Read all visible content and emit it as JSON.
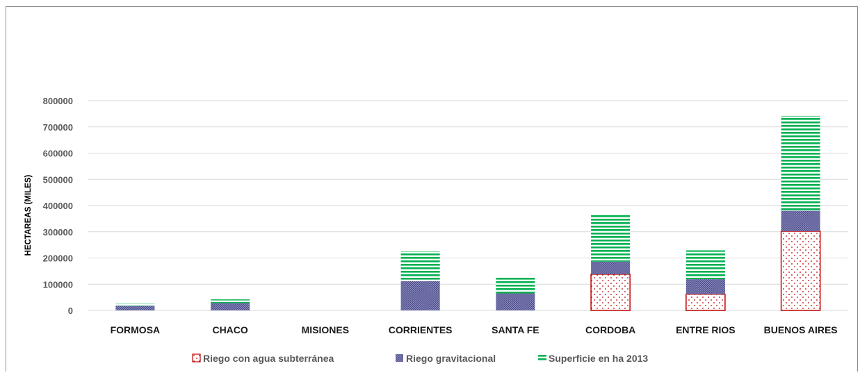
{
  "chart_data": {
    "type": "bar",
    "stacked": true,
    "ylabel": "HECTAREAS  (MILES)",
    "xlabel": "",
    "ylim": [
      0,
      800000
    ],
    "yticks": [
      0,
      100000,
      200000,
      300000,
      400000,
      500000,
      600000,
      700000,
      800000
    ],
    "grid": true,
    "legend_position": "bottom",
    "categories": [
      "FORMOSA",
      "CHACO",
      "MISIONES",
      "CORRIENTES",
      "SANTA FE",
      "CORDOBA",
      "ENTRE RIOS",
      "BUENOS AIRES"
    ],
    "series": [
      {
        "name": "Riego con agua subterránea",
        "pattern": "dots",
        "color": "#c00000",
        "values": [
          0,
          0,
          0,
          0,
          0,
          138000,
          62000,
          302000
        ]
      },
      {
        "name": "Riego gravitacional",
        "pattern": "crosshatch",
        "color": "#5b5b9a",
        "values": [
          17000,
          28000,
          0,
          112000,
          65000,
          48000,
          57000,
          78000
        ]
      },
      {
        "name": "Superficie en ha 2013",
        "pattern": "horizontal-lines",
        "color": "#00b050",
        "values": [
          9000,
          14000,
          0,
          113000,
          63000,
          182000,
          110000,
          362000
        ]
      }
    ]
  }
}
